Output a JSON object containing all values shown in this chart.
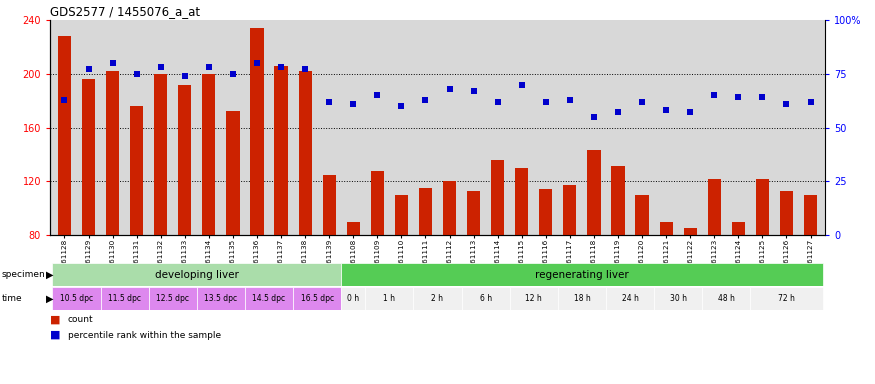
{
  "title": "GDS2577 / 1455076_a_at",
  "gsm_labels": [
    "GSM161128",
    "GSM161129",
    "GSM161130",
    "GSM161131",
    "GSM161132",
    "GSM161133",
    "GSM161134",
    "GSM161135",
    "GSM161136",
    "GSM161137",
    "GSM161138",
    "GSM161139",
    "GSM161108",
    "GSM161109",
    "GSM161110",
    "GSM161111",
    "GSM161112",
    "GSM161113",
    "GSM161114",
    "GSM161115",
    "GSM161116",
    "GSM161117",
    "GSM161118",
    "GSM161119",
    "GSM161120",
    "GSM161121",
    "GSM161122",
    "GSM161123",
    "GSM161124",
    "GSM161125",
    "GSM161126",
    "GSM161127"
  ],
  "bar_values": [
    228,
    196,
    202,
    176,
    200,
    192,
    200,
    172,
    234,
    206,
    202,
    125,
    90,
    128,
    110,
    115,
    120,
    113,
    136,
    130,
    114,
    117,
    143,
    131,
    110,
    90,
    85,
    122,
    90,
    122,
    113,
    110
  ],
  "pct_values": [
    63,
    77,
    80,
    75,
    78,
    74,
    78,
    75,
    80,
    78,
    77,
    62,
    61,
    65,
    60,
    63,
    68,
    67,
    62,
    70,
    62,
    63,
    55,
    57,
    62,
    58,
    57,
    65,
    64,
    64,
    61,
    62
  ],
  "ylim_left": [
    80,
    240
  ],
  "ylim_right": [
    0,
    100
  ],
  "yticks_left": [
    80,
    120,
    160,
    200,
    240
  ],
  "yticks_right": [
    0,
    25,
    50,
    75,
    100
  ],
  "ytick_labels_right": [
    "0",
    "25",
    "50",
    "75",
    "100%"
  ],
  "bar_color": "#cc2200",
  "dot_color": "#0000cc",
  "bg_color": "#d8d8d8",
  "plot_bg": "#ffffff",
  "specimen_dev_color": "#aaddaa",
  "specimen_reg_color": "#55cc55",
  "time_dev_color": "#dd88ee",
  "time_reg_color": "#f0f0f0",
  "specimen_dev_label": "developing liver",
  "specimen_reg_label": "regenerating liver",
  "time_dev_labels": [
    "10.5 dpc",
    "11.5 dpc",
    "12.5 dpc",
    "13.5 dpc",
    "14.5 dpc",
    "16.5 dpc"
  ],
  "time_reg_labels": [
    "0 h",
    "1 h",
    "2 h",
    "6 h",
    "12 h",
    "18 h",
    "24 h",
    "30 h",
    "48 h",
    "72 h"
  ],
  "time_reg_spans": [
    1,
    2,
    2,
    2,
    2,
    2,
    2,
    2,
    2,
    3
  ],
  "n_dev": 12,
  "n_reg": 20,
  "grid_values": [
    120,
    160,
    200
  ],
  "legend_count_label": "count",
  "legend_pct_label": "percentile rank within the sample"
}
